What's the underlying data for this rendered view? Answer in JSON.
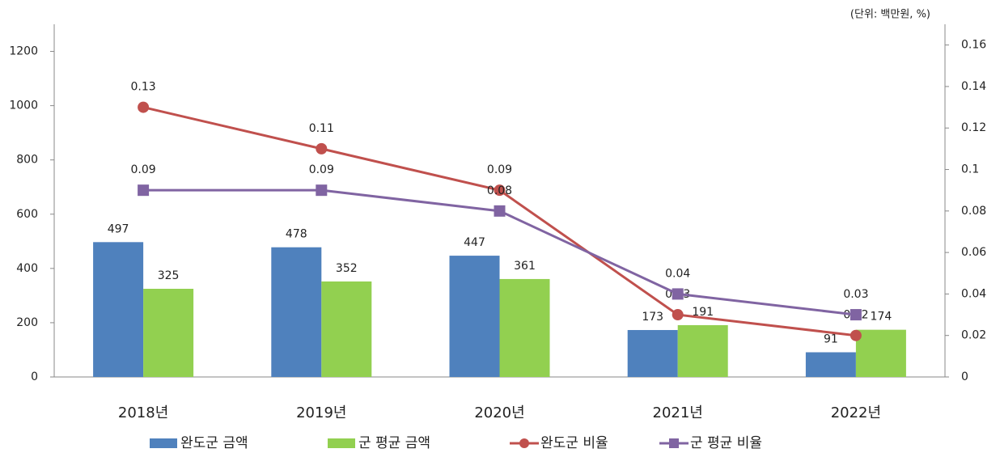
{
  "chart_data": {
    "type": "bar",
    "note": "(단위: 백만원, %)",
    "categories": [
      "2018년",
      "2019년",
      "2020년",
      "2021년",
      "2022년"
    ],
    "series": [
      {
        "name": "완도군 금액",
        "type": "bar",
        "color": "#4f81bd",
        "values": [
          497,
          478,
          447,
          173,
          91
        ]
      },
      {
        "name": "군 평균 금액",
        "type": "bar",
        "color": "#92d050",
        "values": [
          325,
          352,
          361,
          191,
          174
        ]
      },
      {
        "name": "완도군 비율",
        "type": "line",
        "marker": "circle",
        "axis": "y2",
        "color": "#c0504d",
        "values": [
          0.13,
          0.11,
          0.09,
          0.03,
          0.02
        ]
      },
      {
        "name": "군 평균 비율",
        "type": "line",
        "marker": "square",
        "axis": "y2",
        "color": "#8064a2",
        "values": [
          0.09,
          0.09,
          0.08,
          0.04,
          0.03
        ]
      }
    ],
    "ylim": [
      0,
      1300
    ],
    "yticks": [
      0,
      200,
      400,
      600,
      800,
      1000,
      1200
    ],
    "y2lim": [
      0,
      0.17
    ],
    "y2ticks": [
      0,
      0.02,
      0.04,
      0.06,
      0.08,
      0.1,
      0.12,
      0.14,
      0.16
    ],
    "grid": false,
    "legend": "bottom"
  }
}
